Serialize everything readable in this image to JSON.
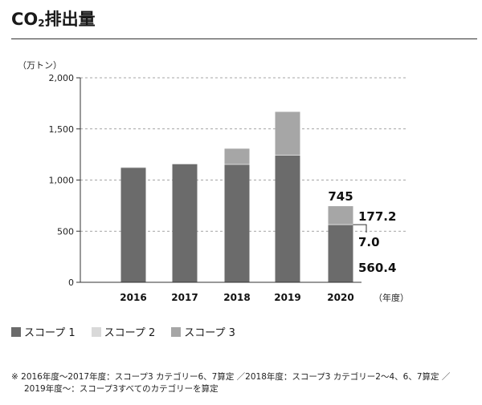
{
  "title": {
    "main": "CO",
    "sub": "2",
    "rest": "排出量"
  },
  "chart_data": {
    "type": "bar",
    "stacked": true,
    "title": "CO2排出量",
    "ylabel": "（万トン）",
    "xlabel": "（年度）",
    "ylim": [
      0,
      2000
    ],
    "yticks": [
      0,
      500,
      1000,
      1500,
      2000
    ],
    "ytick_labels": [
      "0",
      "500",
      "1,000",
      "1,500",
      "2,000"
    ],
    "categories": [
      "2016",
      "2017",
      "2018",
      "2019",
      "2020"
    ],
    "series": [
      {
        "name": "スコープ 1",
        "color": "#6b6b6b",
        "values": [
          1120,
          1155,
          1150,
          1240,
          560.4
        ]
      },
      {
        "name": "スコープ 2",
        "color": "#d9d9d9",
        "values": [
          5,
          5,
          7,
          7,
          7.0
        ]
      },
      {
        "name": "スコープ 3",
        "color": "#a6a6a6",
        "values": [
          0,
          0,
          150,
          420,
          177.2
        ]
      }
    ],
    "annotations": {
      "total_2020": "745",
      "scope3_2020": "177.2",
      "scope2_2020": "7.0",
      "scope1_2020": "560.4"
    },
    "grid": true
  },
  "legend": [
    {
      "label": "スコープ 1",
      "color": "#6b6b6b"
    },
    {
      "label": "スコープ 2",
      "color": "#d9d9d9"
    },
    {
      "label": "スコープ 3",
      "color": "#a6a6a6"
    }
  ],
  "note": {
    "line1": "※ 2016年度～2017年度：スコープ3 カテゴリー6、7算定 ／2018年度：スコープ3 カテゴリー2～4、6、7算定 ／",
    "line2": "2019年度～：スコープ3すべてのカテゴリーを算定"
  }
}
